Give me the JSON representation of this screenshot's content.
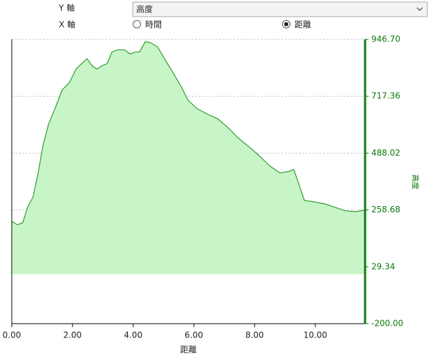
{
  "controls": {
    "y_axis_label": "Y 軸",
    "y_axis_value": "高度",
    "x_axis_label": "X 軸",
    "x_options": [
      "時間",
      "距離"
    ],
    "x_selected": 1
  },
  "chart_data": {
    "type": "area",
    "x_label": "距離",
    "y_label": "高度",
    "x": [
      0,
      0.18,
      0.36,
      0.52,
      0.7,
      0.87,
      1.03,
      1.21,
      1.44,
      1.66,
      1.89,
      2.12,
      2.3,
      2.48,
      2.64,
      2.8,
      2.98,
      3.14,
      3.3,
      3.49,
      3.71,
      3.9,
      4.08,
      4.21,
      4.4,
      4.58,
      4.81,
      5.03,
      5.31,
      5.58,
      5.81,
      6.1,
      6.45,
      6.79,
      7.13,
      7.47,
      7.81,
      8.15,
      8.5,
      8.84,
      9.13,
      9.29,
      9.45,
      9.64,
      9.98,
      10.32,
      10.66,
      11.0,
      11.34,
      11.64
    ],
    "series": [
      {
        "name": "高度",
        "color": "#2e9b2e",
        "fill": "#c8f5c8",
        "values": [
          213,
          199,
          207,
          269,
          311,
          408,
          520,
          604,
          673,
          743,
          771,
          827,
          849,
          869,
          841,
          827,
          841,
          849,
          896,
          905,
          905,
          888,
          896,
          896,
          938,
          933,
          916,
          869,
          813,
          757,
          701,
          668,
          645,
          626,
          590,
          548,
          514,
          478,
          436,
          408,
          414,
          422,
          366,
          297,
          291,
          283,
          269,
          255,
          252,
          258
        ]
      }
    ],
    "xlim": [
      0,
      11.64
    ],
    "ylim": [
      -200,
      946.7
    ],
    "xticks": [
      {
        "value": 0,
        "label": "0.00"
      },
      {
        "value": 2,
        "label": "2.00"
      },
      {
        "value": 4,
        "label": "4.00"
      },
      {
        "value": 6,
        "label": "6.00"
      },
      {
        "value": 8,
        "label": "8.00"
      },
      {
        "value": 10,
        "label": "10.00"
      }
    ],
    "yticks": [
      {
        "value": -200,
        "label": "-200.00"
      },
      29.34,
      258.68,
      488.02,
      717.36,
      {
        "value": 946.7,
        "label": "946.70"
      }
    ],
    "grid": true,
    "axis_color": "#0a7a0a"
  }
}
